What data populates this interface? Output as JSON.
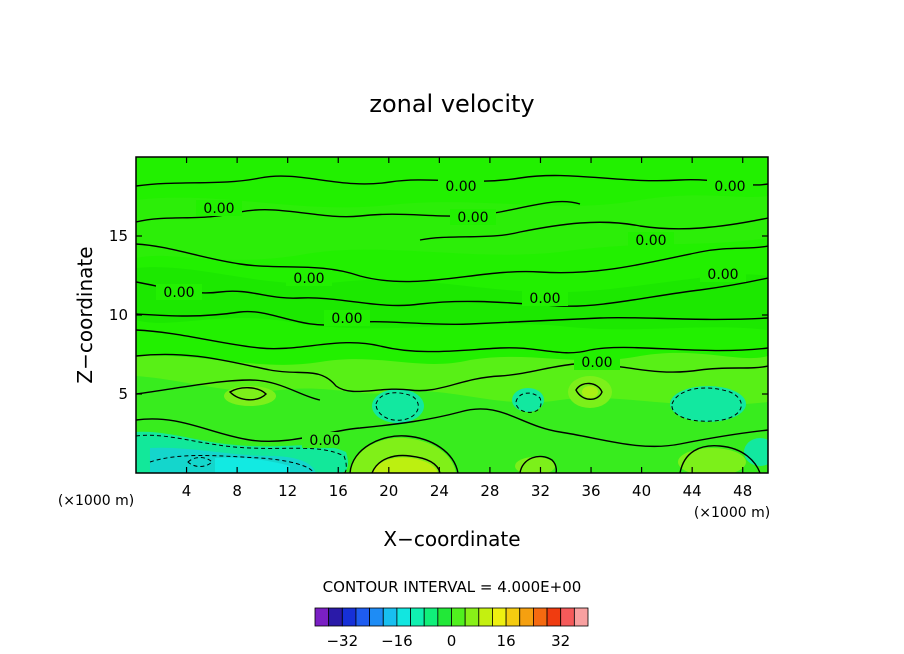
{
  "chart_data": {
    "type": "heatmap",
    "title": "zonal velocity",
    "xlabel": "X−coordinate",
    "ylabel": "Z−coordinate",
    "x_unit": "(×1000 m)",
    "y_unit": "(×1000 m)",
    "xlim": [
      0,
      50
    ],
    "ylim": [
      0,
      20
    ],
    "x_ticks": [
      4,
      8,
      12,
      16,
      20,
      24,
      28,
      32,
      36,
      40,
      44,
      48
    ],
    "y_ticks": [
      5,
      10,
      15
    ],
    "contour_interval_label": "CONTOUR INTERVAL = 4.000E+00",
    "contour_labels": [
      "0.00",
      "0.00",
      "0.00",
      "0.00",
      "0.00",
      "0.00",
      "0.00",
      "0.00",
      "0.00",
      "0.00",
      "0.00",
      "0.00"
    ],
    "colorbar": {
      "tick_labels": [
        "−32",
        "−16",
        "0",
        "16",
        "32"
      ],
      "tick_values": [
        -32,
        -16,
        0,
        16,
        32
      ],
      "levels": [
        -40,
        -36,
        -32,
        -28,
        -24,
        -20,
        -16,
        -12,
        -8,
        -4,
        0,
        4,
        8,
        12,
        16,
        20,
        24,
        28,
        32,
        36,
        40
      ],
      "colors": [
        "#7a1fc4",
        "#2a1aa8",
        "#1630d8",
        "#1e5cf0",
        "#1e8cf5",
        "#18bff0",
        "#12e6e0",
        "#10f0b0",
        "#10f07a",
        "#22e838",
        "#50f01e",
        "#88f018",
        "#c4f010",
        "#eef010",
        "#f5cc10",
        "#f5a010",
        "#f56a10",
        "#f03c10",
        "#f55a5a",
        "#f8a0a0"
      ]
    },
    "grid": false
  }
}
